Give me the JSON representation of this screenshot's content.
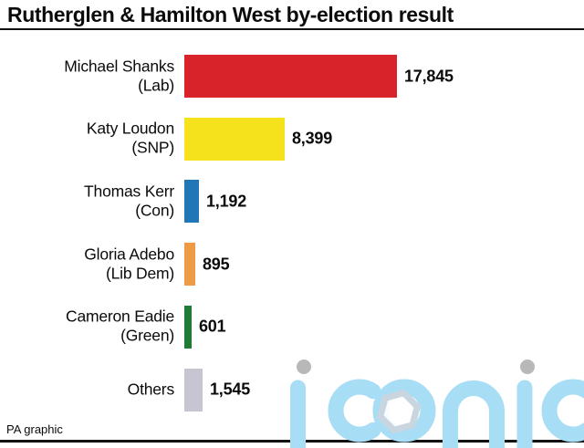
{
  "title": "Rutherglen & Hamilton West by-election result",
  "source": "PA graphic",
  "watermark": {
    "text": "iconic",
    "letter_color": "#a8ddf6",
    "dot_color": "#b9b8b8",
    "hex_stroke_color": "#c9d6e0"
  },
  "chart_data": {
    "type": "bar",
    "orientation": "horizontal",
    "title": "Rutherglen & Hamilton West by-election result",
    "value_axis_visible": false,
    "grid": false,
    "legend": false,
    "max_votes": 17845,
    "categories": [
      "Michael Shanks (Lab)",
      "Katy Loudon (SNP)",
      "Thomas Kerr (Con)",
      "Gloria Adebo (Lib Dem)",
      "Cameron Eadie (Green)",
      "Others"
    ],
    "values": [
      17845,
      8399,
      1192,
      895,
      601,
      1545
    ],
    "bars": [
      {
        "name": "Michael Shanks",
        "party": "(Lab)",
        "votes": 17845,
        "label": "17,845",
        "color": "#d8232a"
      },
      {
        "name": "Katy Loudon",
        "party": "(SNP)",
        "votes": 8399,
        "label": "8,399",
        "color": "#f5e11c"
      },
      {
        "name": "Thomas Kerr",
        "party": "(Con)",
        "votes": 1192,
        "label": "1,192",
        "color": "#2176b6"
      },
      {
        "name": "Gloria Adebo",
        "party": "(Lib Dem)",
        "votes": 895,
        "label": "895",
        "color": "#ef9b45"
      },
      {
        "name": "Cameron Eadie",
        "party": "(Green)",
        "votes": 601,
        "label": "601",
        "color": "#1e7c34"
      },
      {
        "name": "Others",
        "party": "",
        "votes": 1545,
        "label": "1,545",
        "color": "#c7c5d1"
      }
    ]
  }
}
